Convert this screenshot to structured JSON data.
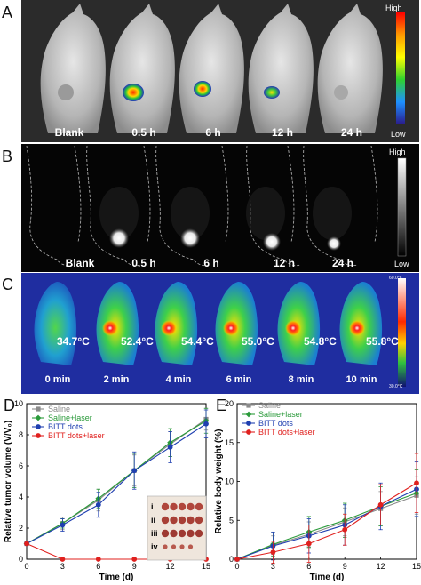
{
  "panelA": {
    "letter": "A",
    "labels": [
      "Blank",
      "0.5 h",
      "6 h",
      "12 h",
      "24 h"
    ],
    "scale_high": "High",
    "scale_low": "Low"
  },
  "panelB": {
    "letter": "B",
    "labels": [
      "Blank",
      "0.5 h",
      "6 h",
      "12 h",
      "24 h"
    ],
    "scale_high": "High",
    "scale_low": "Low"
  },
  "panelC": {
    "letter": "C",
    "temps": [
      "34.7°C",
      "52.4°C",
      "54.4°C",
      "55.0°C",
      "54.8°C",
      "55.8°C"
    ],
    "times": [
      "0 min",
      "2 min",
      "4 min",
      "6 min",
      "8 min",
      "10 min"
    ],
    "scale_top": "60.0°C",
    "scale_bottom": "30.0°C"
  },
  "panelD": {
    "letter": "D",
    "inset_labels": [
      "i",
      "ii",
      "iii",
      "iv"
    ]
  },
  "panelE": {
    "letter": "E"
  },
  "colors": {
    "saline": "#8a8a8a",
    "saline_laser": "#2a9a3a",
    "bitt": "#1f3fb0",
    "bitt_laser": "#e0201e"
  },
  "chart_data": [
    {
      "type": "line",
      "panel": "D",
      "xlabel": "Time (d)",
      "ylabel": "Relative tumor volume (V/V₀)",
      "x": [
        0,
        3,
        6,
        9,
        12,
        15
      ],
      "xlim": [
        0,
        15
      ],
      "ylim": [
        0,
        10
      ],
      "xticks": [
        "0",
        "3",
        "6",
        "9",
        "12",
        "15"
      ],
      "yticks": [
        "0",
        "2",
        "4",
        "6",
        "8",
        "10"
      ],
      "legend_position": "top-left",
      "series": [
        {
          "name": "Saline",
          "values": [
            1.0,
            2.3,
            3.8,
            5.7,
            7.4,
            9.0
          ],
          "errors": [
            0.1,
            0.4,
            0.7,
            1.0,
            0.8,
            0.7
          ]
        },
        {
          "name": "Saline+laser",
          "values": [
            1.0,
            2.3,
            3.9,
            5.7,
            7.5,
            8.9
          ],
          "errors": [
            0.1,
            0.3,
            0.6,
            1.1,
            0.9,
            0.8
          ]
        },
        {
          "name": "BITT dots",
          "values": [
            1.0,
            2.2,
            3.5,
            5.7,
            7.2,
            8.7
          ],
          "errors": [
            0.1,
            0.4,
            0.8,
            1.2,
            1.0,
            0.9
          ]
        },
        {
          "name": "BITT dots+laser",
          "values": [
            1.0,
            0.0,
            0.0,
            0.0,
            0.0,
            0.0
          ],
          "errors": [
            0,
            0,
            0,
            0,
            0,
            0
          ]
        }
      ]
    },
    {
      "type": "line",
      "panel": "E",
      "xlabel": "Time (d)",
      "ylabel": "Relative body weight (%)",
      "x": [
        0,
        3,
        6,
        9,
        12,
        15
      ],
      "xlim": [
        0,
        15
      ],
      "ylim": [
        0,
        20
      ],
      "xticks": [
        "0",
        "3",
        "6",
        "9",
        "12",
        "15"
      ],
      "yticks": [
        "0",
        "5",
        "10",
        "15",
        "20"
      ],
      "legend_position": "top-left",
      "series": [
        {
          "name": "Saline",
          "values": [
            0.0,
            1.8,
            3.2,
            4.8,
            6.5,
            8.2
          ],
          "errors": [
            0.2,
            1.2,
            1.6,
            1.8,
            2.2,
            2.4
          ]
        },
        {
          "name": "Saline+laser",
          "values": [
            0.0,
            1.9,
            3.5,
            5.0,
            6.8,
            8.5
          ],
          "errors": [
            0.2,
            1.5,
            2.0,
            2.2,
            2.5,
            3.0
          ]
        },
        {
          "name": "BITT dots",
          "values": [
            0.0,
            1.7,
            3.0,
            4.4,
            6.8,
            9.0
          ],
          "errors": [
            0.2,
            1.8,
            2.2,
            2.6,
            3.0,
            3.5
          ]
        },
        {
          "name": "BITT dots+laser",
          "values": [
            0.0,
            0.9,
            2.0,
            3.8,
            7.0,
            9.8
          ],
          "errors": [
            0.2,
            1.4,
            2.4,
            2.0,
            2.6,
            3.8
          ]
        }
      ]
    }
  ]
}
